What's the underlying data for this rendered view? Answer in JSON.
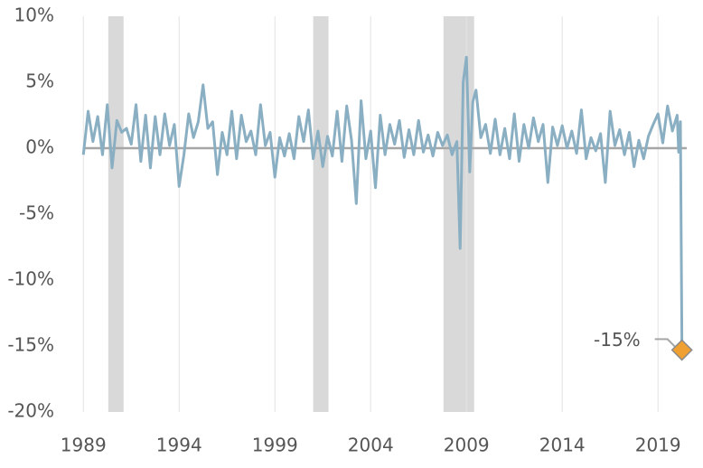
{
  "chart_data": {
    "type": "line",
    "x": [
      1989.0,
      1989.25,
      1989.5,
      1989.75,
      1990.0,
      1990.25,
      1990.5,
      1990.75,
      1991.0,
      1991.25,
      1991.5,
      1991.75,
      1992.0,
      1992.25,
      1992.5,
      1992.75,
      1993.0,
      1993.25,
      1993.5,
      1993.75,
      1994.0,
      1994.25,
      1994.5,
      1994.75,
      1995.0,
      1995.25,
      1995.5,
      1995.75,
      1996.0,
      1996.25,
      1996.5,
      1996.75,
      1997.0,
      1997.25,
      1997.5,
      1997.75,
      1998.0,
      1998.25,
      1998.5,
      1998.75,
      1999.0,
      1999.25,
      1999.5,
      1999.75,
      2000.0,
      2000.25,
      2000.5,
      2000.75,
      2001.0,
      2001.25,
      2001.5,
      2001.75,
      2002.0,
      2002.25,
      2002.5,
      2002.75,
      2003.0,
      2003.25,
      2003.5,
      2003.75,
      2004.0,
      2004.25,
      2004.5,
      2004.75,
      2005.0,
      2005.25,
      2005.5,
      2005.75,
      2006.0,
      2006.25,
      2006.5,
      2006.75,
      2007.0,
      2007.25,
      2007.5,
      2007.75,
      2008.0,
      2008.25,
      2008.5,
      2008.67,
      2008.83,
      2009.0,
      2009.17,
      2009.33,
      2009.5,
      2009.75,
      2010.0,
      2010.25,
      2010.5,
      2010.75,
      2011.0,
      2011.25,
      2011.5,
      2011.75,
      2012.0,
      2012.25,
      2012.5,
      2012.75,
      2013.0,
      2013.25,
      2013.5,
      2013.75,
      2014.0,
      2014.25,
      2014.5,
      2014.75,
      2015.0,
      2015.25,
      2015.5,
      2015.75,
      2016.0,
      2016.25,
      2016.5,
      2016.75,
      2017.0,
      2017.25,
      2017.5,
      2017.75,
      2018.0,
      2018.25,
      2018.5,
      2018.75,
      2019.0,
      2019.25,
      2019.5,
      2019.75,
      2020.0,
      2020.08,
      2020.17,
      2020.25
    ],
    "series": [
      {
        "color": "#8aafc3",
        "values": [
          -0.5,
          2.8,
          0.5,
          2.4,
          -0.5,
          3.3,
          -1.5,
          2.1,
          1.2,
          1.5,
          0.3,
          3.3,
          -1.0,
          2.5,
          -1.5,
          2.4,
          -0.5,
          2.6,
          0.2,
          1.8,
          -2.9,
          -0.5,
          2.6,
          0.8,
          2.0,
          4.8,
          1.5,
          2.0,
          -2.0,
          1.2,
          -0.5,
          2.8,
          -0.8,
          2.5,
          0.5,
          1.3,
          -0.5,
          3.3,
          0.2,
          1.2,
          -2.2,
          0.8,
          -0.6,
          1.1,
          -0.8,
          2.4,
          0.5,
          2.9,
          -0.8,
          1.3,
          -1.4,
          0.9,
          -0.6,
          2.8,
          -1.0,
          3.2,
          0.6,
          -4.2,
          3.6,
          -0.8,
          1.3,
          -3.0,
          2.5,
          -0.5,
          1.8,
          0.3,
          2.1,
          -0.7,
          1.4,
          -0.5,
          2.1,
          -0.3,
          1.0,
          -0.6,
          1.2,
          0.2,
          1.0,
          -0.5,
          0.5,
          -7.6,
          5.0,
          6.9,
          -1.8,
          3.5,
          4.4,
          0.8,
          1.8,
          -0.4,
          2.2,
          -0.5,
          1.5,
          -0.8,
          2.6,
          -1.0,
          1.8,
          0.0,
          2.3,
          0.5,
          1.8,
          -2.6,
          1.6,
          0.2,
          1.7,
          0.0,
          1.3,
          -0.4,
          2.9,
          -0.8,
          0.8,
          -0.2,
          1.1,
          -2.6,
          2.8,
          0.2,
          1.4,
          -0.5,
          1.2,
          -1.4,
          0.6,
          -0.8,
          0.9,
          1.8,
          2.6,
          0.4,
          3.2,
          1.3,
          2.5,
          -0.3,
          2.0,
          -15.3
        ]
      }
    ],
    "highlight_label": "-15%",
    "highlight_color": "#f0a030",
    "shaded_periods": [
      [
        1990.3,
        1991.1
      ],
      [
        2001.0,
        2001.8
      ],
      [
        2007.8,
        2009.4
      ]
    ],
    "xlim": [
      1988.8,
      2020.5
    ],
    "xticks": [
      1989,
      1994,
      1999,
      2004,
      2009,
      2014,
      2019
    ],
    "ylim": [
      -20,
      10
    ],
    "yticks": [
      {
        "value": 10,
        "label": "10%"
      },
      {
        "value": 5,
        "label": "5%"
      },
      {
        "value": 0,
        "label": "0%"
      },
      {
        "value": -5,
        "label": "-5%"
      },
      {
        "value": -10,
        "label": "-10%"
      },
      {
        "value": -15,
        "label": "-15%"
      },
      {
        "value": -20,
        "label": "-20%"
      }
    ],
    "grid": true
  }
}
